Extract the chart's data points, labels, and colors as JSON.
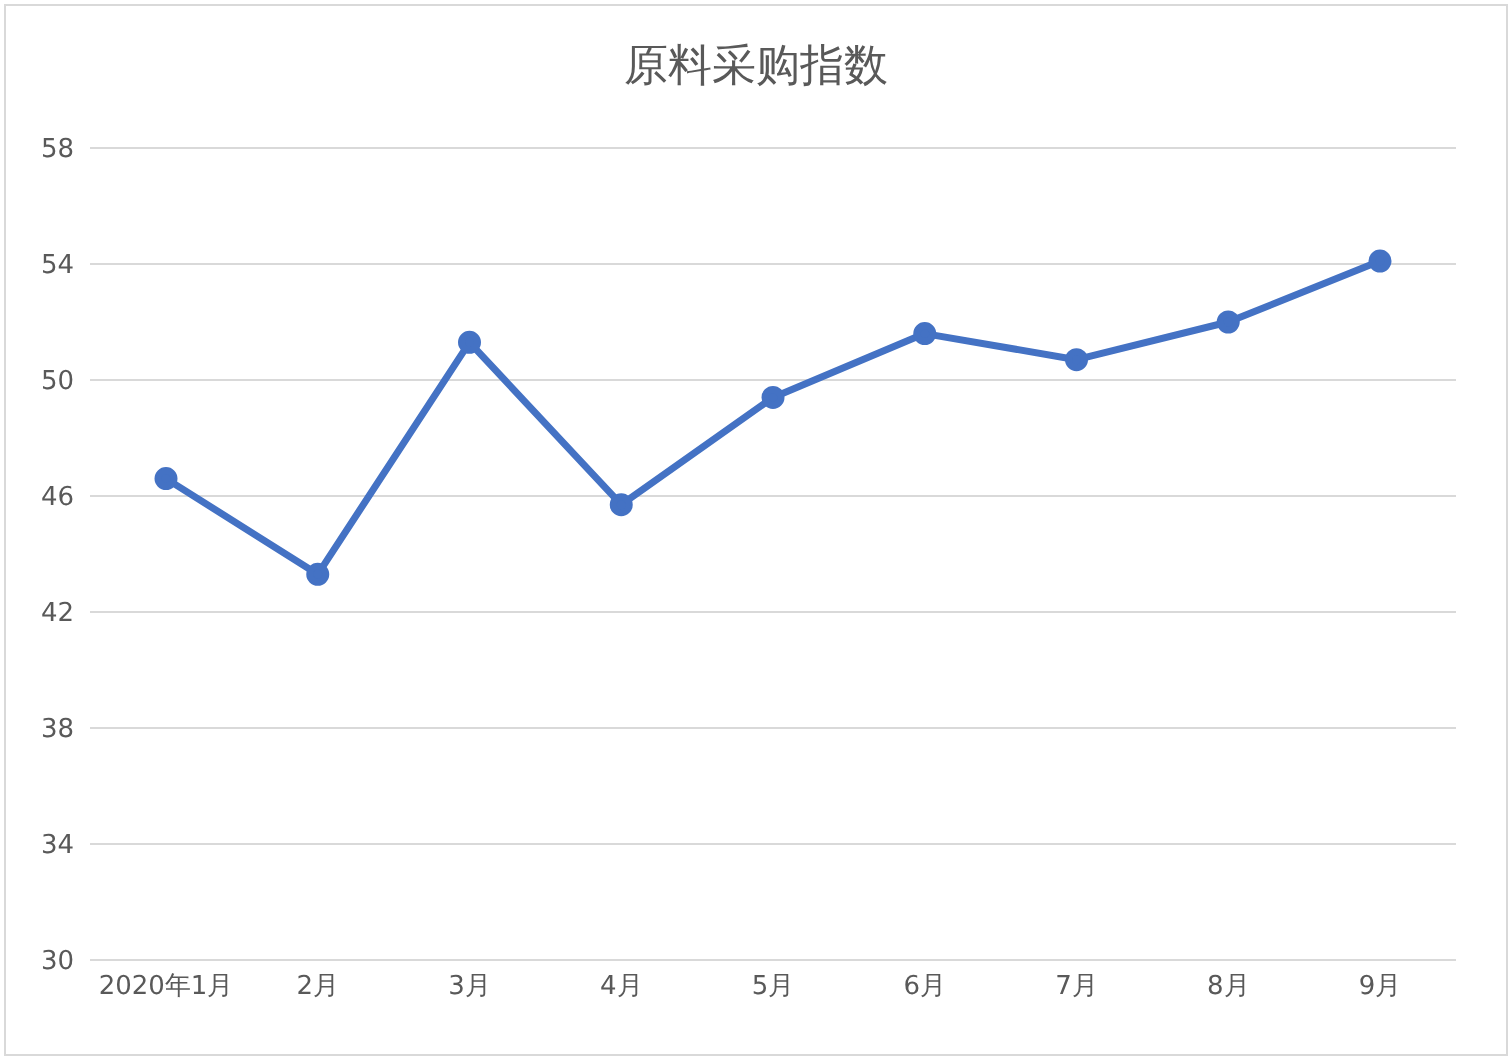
{
  "chart_data": {
    "type": "line",
    "title": "原料采购指数",
    "categories": [
      "2020年1月",
      "2月",
      "3月",
      "4月",
      "5月",
      "6月",
      "7月",
      "8月",
      "9月"
    ],
    "series": [
      {
        "color": "#4472c4",
        "values": [
          46.6,
          43.3,
          51.3,
          45.7,
          49.4,
          51.6,
          50.7,
          52.0,
          54.1
        ]
      }
    ],
    "ylim": [
      30,
      58
    ],
    "yticks": [
      30,
      34,
      38,
      42,
      46,
      50,
      54,
      58
    ],
    "grid": "y",
    "marker": "circle",
    "line_style": "solid"
  }
}
